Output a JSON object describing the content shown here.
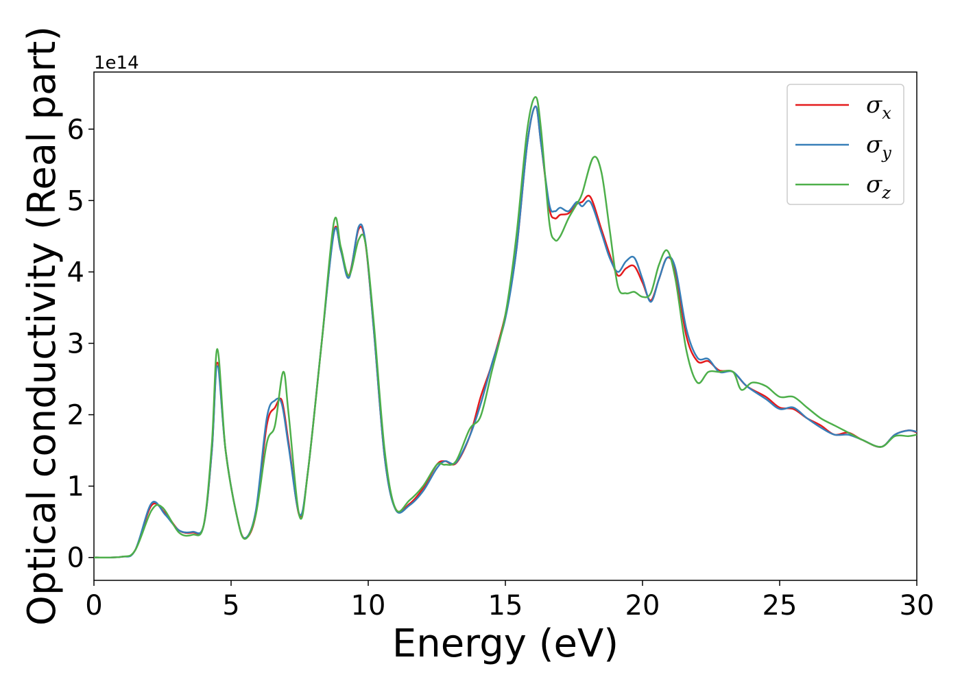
{
  "chart_data": {
    "type": "line",
    "xlabel": "Energy (eV)",
    "ylabel": "Optical conductivity (Real part)",
    "y_offset_text": "1e14",
    "xlim": [
      0,
      30
    ],
    "ylim": [
      -0.32,
      6.8
    ],
    "x_ticks": [
      0,
      5,
      10,
      15,
      20,
      25,
      30
    ],
    "y_ticks": [
      0,
      1,
      2,
      3,
      4,
      5,
      6
    ],
    "grid": false,
    "legend_position": "top-right",
    "series": [
      {
        "name": "σx",
        "symbol": "σ",
        "subscript": "x",
        "color": "#e41a1c",
        "points": [
          [
            0,
            0
          ],
          [
            1,
            0.01
          ],
          [
            1.5,
            0.1
          ],
          [
            2.1,
            0.73
          ],
          [
            2.6,
            0.62
          ],
          [
            3.1,
            0.38
          ],
          [
            3.6,
            0.35
          ],
          [
            4.0,
            0.45
          ],
          [
            4.3,
            1.5
          ],
          [
            4.5,
            2.73
          ],
          [
            4.8,
            1.5
          ],
          [
            5.2,
            0.6
          ],
          [
            5.5,
            0.27
          ],
          [
            5.9,
            0.6
          ],
          [
            6.3,
            1.85
          ],
          [
            6.6,
            2.1
          ],
          [
            6.85,
            2.2
          ],
          [
            7.1,
            1.6
          ],
          [
            7.5,
            0.58
          ],
          [
            7.8,
            1.2
          ],
          [
            8.3,
            3.0
          ],
          [
            8.75,
            4.57
          ],
          [
            9.0,
            4.3
          ],
          [
            9.3,
            3.95
          ],
          [
            9.65,
            4.6
          ],
          [
            9.9,
            4.4
          ],
          [
            10.2,
            3.2
          ],
          [
            10.6,
            1.4
          ],
          [
            11.0,
            0.68
          ],
          [
            11.5,
            0.75
          ],
          [
            12.0,
            0.97
          ],
          [
            12.5,
            1.3
          ],
          [
            12.8,
            1.35
          ],
          [
            13.2,
            1.32
          ],
          [
            13.7,
            1.7
          ],
          [
            14.1,
            2.25
          ],
          [
            14.5,
            2.7
          ],
          [
            15.0,
            3.4
          ],
          [
            15.4,
            4.3
          ],
          [
            15.8,
            5.8
          ],
          [
            16.1,
            6.32
          ],
          [
            16.3,
            5.8
          ],
          [
            16.6,
            4.9
          ],
          [
            16.8,
            4.75
          ],
          [
            17.0,
            4.8
          ],
          [
            17.3,
            4.82
          ],
          [
            17.6,
            4.95
          ],
          [
            17.8,
            4.98
          ],
          [
            18.1,
            5.05
          ],
          [
            18.5,
            4.6
          ],
          [
            18.8,
            4.25
          ],
          [
            19.1,
            3.95
          ],
          [
            19.4,
            4.05
          ],
          [
            19.7,
            4.08
          ],
          [
            20.0,
            3.85
          ],
          [
            20.3,
            3.6
          ],
          [
            20.6,
            3.9
          ],
          [
            20.9,
            4.2
          ],
          [
            21.2,
            4.0
          ],
          [
            21.6,
            3.1
          ],
          [
            22.0,
            2.75
          ],
          [
            22.4,
            2.75
          ],
          [
            22.8,
            2.62
          ],
          [
            23.3,
            2.6
          ],
          [
            23.8,
            2.4
          ],
          [
            24.5,
            2.25
          ],
          [
            25.0,
            2.1
          ],
          [
            25.5,
            2.08
          ],
          [
            26.0,
            1.95
          ],
          [
            26.5,
            1.85
          ],
          [
            27.0,
            1.72
          ],
          [
            27.5,
            1.75
          ],
          [
            28.0,
            1.65
          ],
          [
            28.7,
            1.55
          ],
          [
            29.2,
            1.72
          ],
          [
            29.7,
            1.78
          ],
          [
            30,
            1.75
          ]
        ]
      },
      {
        "name": "σy",
        "symbol": "σ",
        "subscript": "y",
        "color": "#377eb8",
        "points": [
          [
            0,
            0
          ],
          [
            1,
            0.01
          ],
          [
            1.5,
            0.1
          ],
          [
            2.1,
            0.76
          ],
          [
            2.6,
            0.6
          ],
          [
            3.1,
            0.38
          ],
          [
            3.6,
            0.36
          ],
          [
            4.0,
            0.45
          ],
          [
            4.3,
            1.5
          ],
          [
            4.5,
            2.68
          ],
          [
            4.8,
            1.5
          ],
          [
            5.2,
            0.6
          ],
          [
            5.5,
            0.27
          ],
          [
            5.9,
            0.65
          ],
          [
            6.3,
            1.95
          ],
          [
            6.6,
            2.2
          ],
          [
            6.85,
            2.15
          ],
          [
            7.1,
            1.55
          ],
          [
            7.5,
            0.6
          ],
          [
            7.8,
            1.2
          ],
          [
            8.3,
            3.0
          ],
          [
            8.75,
            4.55
          ],
          [
            9.0,
            4.3
          ],
          [
            9.3,
            3.92
          ],
          [
            9.65,
            4.63
          ],
          [
            9.9,
            4.42
          ],
          [
            10.2,
            3.2
          ],
          [
            10.6,
            1.4
          ],
          [
            11.0,
            0.67
          ],
          [
            11.5,
            0.73
          ],
          [
            12.0,
            0.93
          ],
          [
            12.5,
            1.25
          ],
          [
            12.8,
            1.35
          ],
          [
            13.2,
            1.33
          ],
          [
            13.7,
            1.7
          ],
          [
            14.1,
            2.15
          ],
          [
            14.5,
            2.7
          ],
          [
            15.0,
            3.35
          ],
          [
            15.4,
            4.3
          ],
          [
            15.8,
            5.8
          ],
          [
            16.1,
            6.32
          ],
          [
            16.3,
            5.8
          ],
          [
            16.6,
            4.95
          ],
          [
            16.8,
            4.85
          ],
          [
            17.0,
            4.9
          ],
          [
            17.3,
            4.85
          ],
          [
            17.6,
            4.98
          ],
          [
            17.8,
            4.92
          ],
          [
            18.1,
            4.98
          ],
          [
            18.5,
            4.55
          ],
          [
            18.8,
            4.2
          ],
          [
            19.1,
            4.0
          ],
          [
            19.4,
            4.15
          ],
          [
            19.7,
            4.2
          ],
          [
            20.0,
            3.9
          ],
          [
            20.3,
            3.58
          ],
          [
            20.6,
            3.9
          ],
          [
            20.9,
            4.2
          ],
          [
            21.2,
            4.05
          ],
          [
            21.6,
            3.2
          ],
          [
            22.0,
            2.8
          ],
          [
            22.4,
            2.78
          ],
          [
            22.8,
            2.6
          ],
          [
            23.3,
            2.6
          ],
          [
            23.8,
            2.4
          ],
          [
            24.5,
            2.22
          ],
          [
            25.0,
            2.08
          ],
          [
            25.5,
            2.1
          ],
          [
            26.0,
            1.95
          ],
          [
            26.5,
            1.82
          ],
          [
            27.0,
            1.72
          ],
          [
            27.5,
            1.72
          ],
          [
            28.0,
            1.65
          ],
          [
            28.7,
            1.55
          ],
          [
            29.2,
            1.72
          ],
          [
            29.7,
            1.78
          ],
          [
            30,
            1.76
          ]
        ]
      },
      {
        "name": "σz",
        "symbol": "σ",
        "subscript": "z",
        "color": "#4daf4a",
        "points": [
          [
            0,
            0
          ],
          [
            1,
            0.01
          ],
          [
            1.5,
            0.1
          ],
          [
            2.1,
            0.66
          ],
          [
            2.5,
            0.7
          ],
          [
            3.1,
            0.35
          ],
          [
            3.6,
            0.32
          ],
          [
            4.0,
            0.45
          ],
          [
            4.3,
            1.6
          ],
          [
            4.5,
            2.92
          ],
          [
            4.8,
            1.5
          ],
          [
            5.2,
            0.6
          ],
          [
            5.5,
            0.26
          ],
          [
            5.9,
            0.6
          ],
          [
            6.3,
            1.6
          ],
          [
            6.6,
            1.85
          ],
          [
            6.9,
            2.6
          ],
          [
            7.1,
            2.0
          ],
          [
            7.5,
            0.57
          ],
          [
            7.8,
            1.2
          ],
          [
            8.3,
            3.0
          ],
          [
            8.75,
            4.7
          ],
          [
            9.0,
            4.35
          ],
          [
            9.3,
            3.95
          ],
          [
            9.65,
            4.45
          ],
          [
            9.9,
            4.4
          ],
          [
            10.2,
            3.3
          ],
          [
            10.6,
            1.5
          ],
          [
            11.0,
            0.68
          ],
          [
            11.5,
            0.8
          ],
          [
            12.0,
            1.0
          ],
          [
            12.5,
            1.3
          ],
          [
            12.8,
            1.3
          ],
          [
            13.2,
            1.35
          ],
          [
            13.7,
            1.8
          ],
          [
            14.1,
            1.98
          ],
          [
            14.5,
            2.6
          ],
          [
            15.0,
            3.4
          ],
          [
            15.4,
            4.5
          ],
          [
            15.8,
            6.0
          ],
          [
            16.1,
            6.45
          ],
          [
            16.3,
            6.0
          ],
          [
            16.6,
            4.7
          ],
          [
            16.8,
            4.45
          ],
          [
            17.0,
            4.5
          ],
          [
            17.3,
            4.75
          ],
          [
            17.6,
            4.95
          ],
          [
            17.8,
            5.1
          ],
          [
            18.2,
            5.6
          ],
          [
            18.5,
            5.4
          ],
          [
            18.8,
            4.6
          ],
          [
            19.1,
            3.8
          ],
          [
            19.4,
            3.7
          ],
          [
            19.7,
            3.72
          ],
          [
            20.0,
            3.65
          ],
          [
            20.3,
            3.7
          ],
          [
            20.6,
            4.1
          ],
          [
            20.9,
            4.3
          ],
          [
            21.2,
            3.9
          ],
          [
            21.6,
            2.9
          ],
          [
            22.0,
            2.45
          ],
          [
            22.4,
            2.6
          ],
          [
            22.8,
            2.6
          ],
          [
            23.3,
            2.6
          ],
          [
            23.6,
            2.35
          ],
          [
            24.0,
            2.45
          ],
          [
            24.5,
            2.4
          ],
          [
            25.0,
            2.25
          ],
          [
            25.5,
            2.25
          ],
          [
            26.0,
            2.1
          ],
          [
            26.5,
            1.95
          ],
          [
            27.0,
            1.85
          ],
          [
            27.5,
            1.75
          ],
          [
            28.0,
            1.65
          ],
          [
            28.7,
            1.55
          ],
          [
            29.2,
            1.7
          ],
          [
            29.7,
            1.7
          ],
          [
            30,
            1.72
          ]
        ]
      }
    ]
  }
}
